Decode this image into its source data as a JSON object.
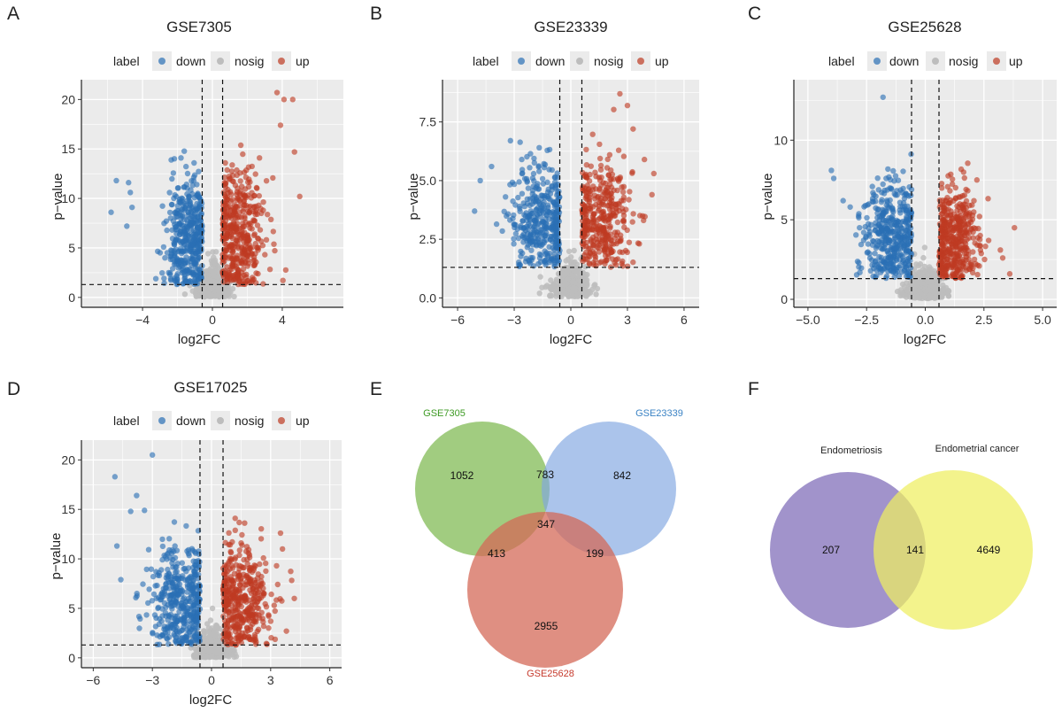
{
  "chart_data": [
    {
      "panel": "A",
      "type": "scatter",
      "title": "GSE7305",
      "xlabel": "log2FC",
      "ylabel": "p−value",
      "xlim": [
        -7.5,
        7.5
      ],
      "ylim": [
        -1,
        22
      ],
      "xticks": [
        -4,
        0,
        4
      ],
      "xtick_labels": [
        "−4",
        "0",
        "4"
      ],
      "yticks": [
        0,
        5,
        10,
        15,
        20
      ],
      "ytick_labels": [
        "0",
        "5",
        "10",
        "15",
        "20"
      ],
      "fc_threshold": 0.585,
      "p_threshold": 1.3,
      "legend_title": "label",
      "legend": [
        "down",
        "nosig",
        "up"
      ],
      "series": [
        {
          "name": "down",
          "cx": -1.4,
          "sx": 0.7,
          "cy": 6,
          "sy": 3.4,
          "xmin": -6,
          "xmax": -0.585,
          "ymin": 1.3,
          "ymax": 15,
          "n": 420,
          "outliers": [
            [
              -5.5,
              11.8
            ],
            [
              -5.8,
              8.6
            ],
            [
              -4.8,
              11.6
            ],
            [
              -4.7,
              10.6
            ],
            [
              -4.6,
              9.1
            ],
            [
              -4.9,
              7.2
            ]
          ]
        },
        {
          "name": "nosig",
          "cx": 0,
          "sx": 0.45,
          "cy": 1.8,
          "sy": 1.6,
          "n": 380
        },
        {
          "name": "up",
          "cx": 1.5,
          "sx": 0.75,
          "cy": 6.5,
          "sy": 3.6,
          "xmin": 0.585,
          "xmax": 5,
          "ymin": 1.3,
          "ymax": 20.8,
          "n": 430,
          "outliers": [
            [
              4.1,
              20
            ],
            [
              3.7,
              20.7
            ],
            [
              4.6,
              20
            ],
            [
              3.9,
              17.4
            ],
            [
              4.7,
              14.7
            ],
            [
              5.0,
              10.2
            ]
          ]
        }
      ]
    },
    {
      "panel": "B",
      "type": "scatter",
      "title": "GSE23339",
      "xlabel": "log2FC",
      "ylabel": "p−value",
      "xlim": [
        -6.8,
        6.8
      ],
      "ylim": [
        -0.4,
        9.3
      ],
      "xticks": [
        -6,
        -3,
        0,
        3,
        6
      ],
      "xtick_labels": [
        "−6",
        "−3",
        "0",
        "3",
        "6"
      ],
      "yticks": [
        0,
        2.5,
        5,
        7.5
      ],
      "ytick_labels": [
        "0.0",
        "2.5",
        "5.0",
        "7.5"
      ],
      "fc_threshold": 0.585,
      "p_threshold": 1.3,
      "legend_title": "label",
      "legend": [
        "down",
        "nosig",
        "up"
      ],
      "series": [
        {
          "name": "down",
          "cx": -1.6,
          "sx": 0.85,
          "cy": 3.2,
          "sy": 1.3,
          "xmin": -5.2,
          "xmax": -0.585,
          "ymin": 1.3,
          "ymax": 6.7,
          "n": 380,
          "outliers": [
            [
              -5.1,
              3.7
            ],
            [
              -4.8,
              5.0
            ],
            [
              -4.2,
              5.6
            ],
            [
              -3.2,
              6.7
            ],
            [
              -2.6,
              5.9
            ]
          ]
        },
        {
          "name": "nosig",
          "cx": 0,
          "sx": 0.5,
          "cy": 0.9,
          "sy": 0.8,
          "n": 360
        },
        {
          "name": "up",
          "cx": 1.5,
          "sx": 0.85,
          "cy": 3.3,
          "sy": 1.4,
          "xmin": 0.585,
          "xmax": 4.5,
          "ymin": 1.3,
          "ymax": 8.7,
          "n": 380,
          "outliers": [
            [
              2.6,
              8.7
            ],
            [
              3.0,
              8.2
            ],
            [
              4.4,
              5.3
            ],
            [
              4.3,
              4.4
            ],
            [
              3.9,
              5.9
            ],
            [
              3.3,
              7.2
            ]
          ]
        }
      ]
    },
    {
      "panel": "C",
      "type": "scatter",
      "title": "GSE25628",
      "xlabel": "log2FC",
      "ylabel": "p−value",
      "xlim": [
        -5.6,
        5.6
      ],
      "ylim": [
        -0.5,
        13.8
      ],
      "xticks": [
        -5,
        -2.5,
        0,
        2.5,
        5
      ],
      "xtick_labels": [
        "−5.0",
        "−2.5",
        "0.0",
        "2.5",
        "5.0"
      ],
      "yticks": [
        0,
        5,
        10
      ],
      "ytick_labels": [
        "0",
        "5",
        "10"
      ],
      "fc_threshold": 0.585,
      "p_threshold": 1.3,
      "legend_title": "label",
      "legend": [
        "down",
        "nosig",
        "up"
      ],
      "series": [
        {
          "name": "down",
          "cx": -1.4,
          "sx": 0.65,
          "cy": 3.8,
          "sy": 1.8,
          "xmin": -4,
          "xmax": -0.585,
          "ymin": 1.3,
          "ymax": 9.5,
          "n": 420,
          "outliers": [
            [
              -1.8,
              12.7
            ],
            [
              -3.9,
              7.6
            ],
            [
              -4.0,
              8.1
            ],
            [
              -3.5,
              6.2
            ],
            [
              -3.2,
              5.8
            ],
            [
              -2.8,
              4.5
            ]
          ]
        },
        {
          "name": "nosig",
          "cx": 0,
          "sx": 0.45,
          "cy": 1.0,
          "sy": 1.0,
          "n": 380
        },
        {
          "name": "up",
          "cx": 1.2,
          "sx": 0.55,
          "cy": 3.8,
          "sy": 1.8,
          "xmin": 0.585,
          "xmax": 3.8,
          "ymin": 1.3,
          "ymax": 8.7,
          "n": 420,
          "outliers": [
            [
              3.8,
              4.5
            ],
            [
              3.6,
              1.6
            ],
            [
              3.3,
              2.6
            ],
            [
              3.2,
              3.1
            ],
            [
              2.7,
              3.7
            ],
            [
              2.2,
              7.5
            ]
          ]
        }
      ]
    },
    {
      "panel": "D",
      "type": "scatter",
      "title": "GSE17025",
      "xlabel": "log2FC",
      "ylabel": "p−value",
      "xlim": [
        -6.6,
        6.6
      ],
      "ylim": [
        -1,
        22
      ],
      "xticks": [
        -6,
        -3,
        0,
        3,
        6
      ],
      "xtick_labels": [
        "−6",
        "−3",
        "0",
        "3",
        "6"
      ],
      "yticks": [
        0,
        5,
        10,
        15,
        20
      ],
      "ytick_labels": [
        "0",
        "5",
        "10",
        "15",
        "20"
      ],
      "fc_threshold": 0.585,
      "p_threshold": 1.3,
      "legend_title": "label",
      "legend": [
        "down",
        "nosig",
        "up"
      ],
      "series": [
        {
          "name": "down",
          "cx": -1.6,
          "sx": 0.8,
          "cy": 5.5,
          "sy": 3.0,
          "xmin": -5,
          "xmax": -0.585,
          "ymin": 1.3,
          "ymax": 14,
          "n": 420,
          "outliers": [
            [
              -3.0,
              20.5
            ],
            [
              -4.9,
              18.3
            ],
            [
              -3.8,
              16.4
            ],
            [
              -4.1,
              14.8
            ],
            [
              -3.4,
              14.9
            ],
            [
              -4.8,
              11.3
            ],
            [
              -4.6,
              7.9
            ]
          ]
        },
        {
          "name": "nosig",
          "cx": 0,
          "sx": 0.45,
          "cy": 1.7,
          "sy": 1.5,
          "n": 380
        },
        {
          "name": "up",
          "cx": 1.5,
          "sx": 0.75,
          "cy": 5.5,
          "sy": 3.0,
          "xmin": 0.585,
          "xmax": 4.3,
          "ymin": 1.3,
          "ymax": 14.3,
          "n": 420,
          "outliers": [
            [
              4.2,
              6.0
            ],
            [
              3.8,
              2.7
            ],
            [
              3.6,
              11.0
            ],
            [
              3.5,
              12.6
            ],
            [
              3.3,
              9.3
            ],
            [
              1.2,
              14.1
            ]
          ]
        }
      ]
    },
    {
      "panel": "E",
      "type": "venn",
      "sets": [
        "GSE7305",
        "GSE23339",
        "GSE25628"
      ],
      "set_colors": [
        "#3d9a23",
        "#3b83c4",
        "#c63a2c"
      ],
      "fill_colors": [
        "rgba(112,178,62,0.66)",
        "rgba(128,166,224,0.66)",
        "rgba(212,104,86,0.74)"
      ],
      "counts": {
        "GSE7305_only": "1052",
        "GSE23339_only": "842",
        "GSE25628_only": "2955",
        "GSE7305_GSE23339": "783",
        "GSE7305_GSE25628": "413",
        "GSE23339_GSE25628": "199",
        "all_three": "347"
      }
    },
    {
      "panel": "F",
      "type": "venn",
      "sets": [
        "Endometriosis",
        "Endometrial cancer"
      ],
      "fill_colors": [
        "rgba(148,132,196,0.88)",
        "rgba(238,238,96,0.72)"
      ],
      "counts": {
        "Endometriosis_only": "207",
        "both": "141",
        "Endometrial_cancer_only": "4649"
      }
    }
  ],
  "legend_colors": {
    "down": "#2a6fb5",
    "nosig": "#bdbdbd",
    "up": "#be3a22"
  },
  "panel_bg": "#ebebeb"
}
